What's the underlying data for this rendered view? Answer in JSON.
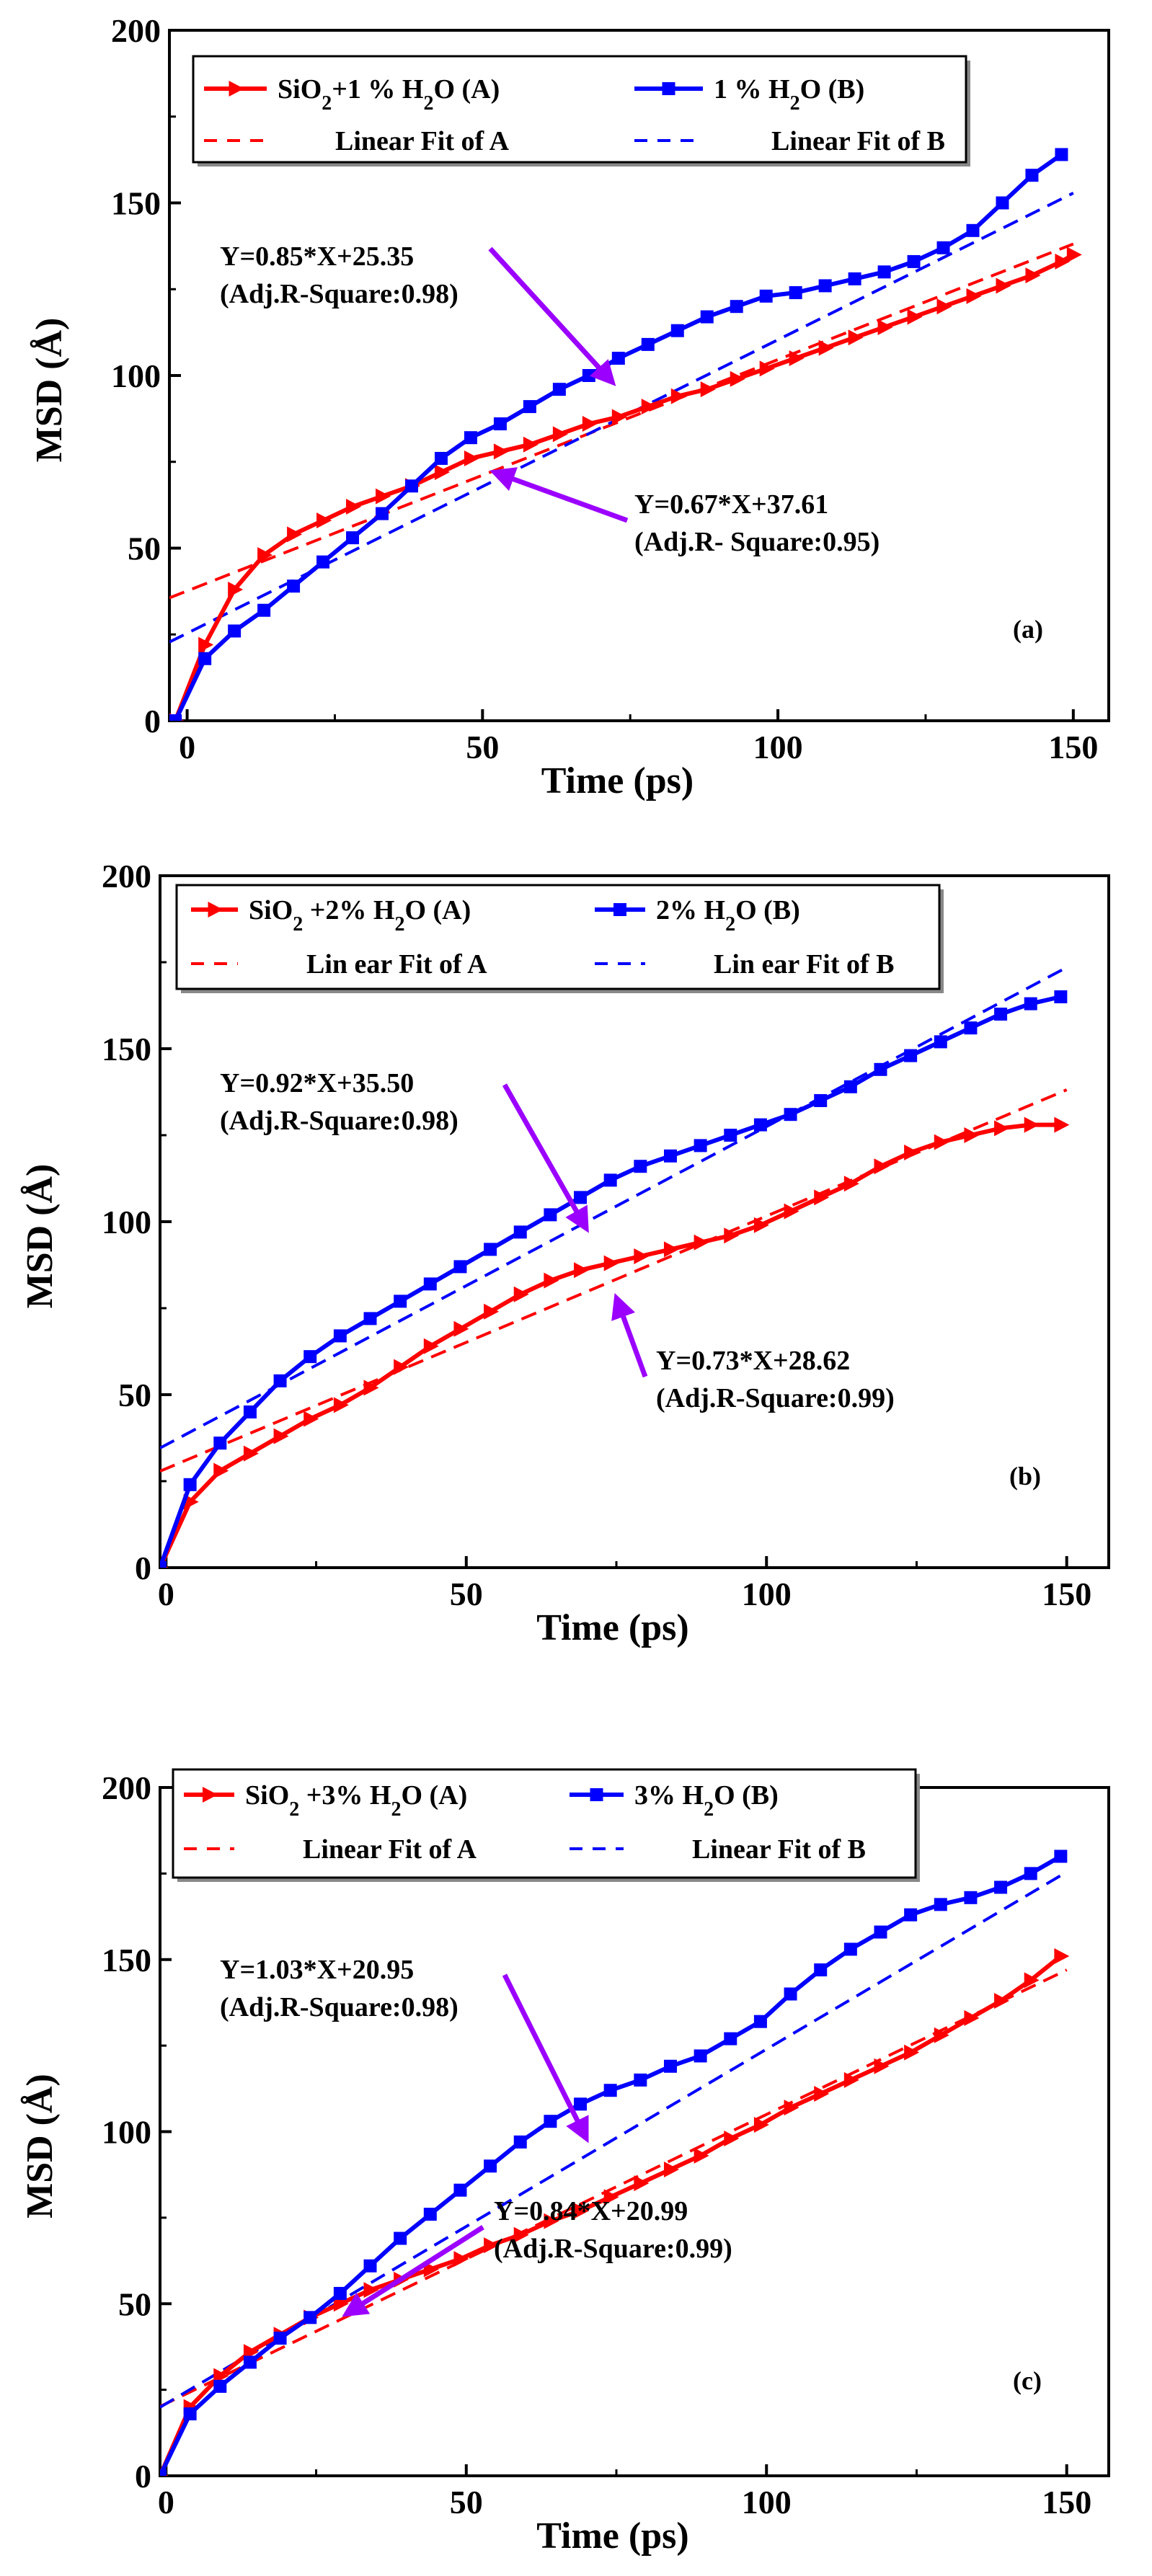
{
  "chart_data": [
    {
      "type": "line",
      "panel_label": "(a)",
      "xlabel": "Time (ps)",
      "ylabel": "MSD (Å)",
      "xlim": [
        -3,
        156
      ],
      "ylim": [
        0,
        200
      ],
      "xticks": [
        "0",
        "50",
        "100",
        "150"
      ],
      "yticks": [
        "0",
        "50",
        "100",
        "150",
        "200"
      ],
      "legend": {
        "position": "top-left",
        "entries": [
          {
            "text": "SiO₂+1 % H₂O (A)",
            "series": "A"
          },
          {
            "text": "1 % H₂O (B)",
            "series": "B"
          },
          {
            "text": "Linear Fit of A",
            "series": "fitA"
          },
          {
            "text": "Linear Fit of B",
            "series": "fitB"
          }
        ]
      },
      "series": [
        {
          "name": "A",
          "color": "#ff0000",
          "marker": "triangle-right",
          "x": [
            -2,
            3,
            8,
            13,
            18,
            23,
            28,
            33,
            38,
            43,
            48,
            53,
            58,
            63,
            68,
            73,
            78,
            83,
            88,
            93,
            98,
            103,
            108,
            113,
            118,
            123,
            128,
            133,
            138,
            143,
            148,
            150
          ],
          "y": [
            0,
            22,
            38,
            48,
            54,
            58,
            62,
            65,
            68,
            72,
            76,
            78,
            80,
            83,
            86,
            88,
            91,
            94,
            96,
            99,
            102,
            105,
            108,
            111,
            114,
            117,
            120,
            123,
            126,
            129,
            133,
            135
          ]
        },
        {
          "name": "B",
          "color": "#0000ff",
          "marker": "square",
          "x": [
            -2,
            3,
            8,
            13,
            18,
            23,
            28,
            33,
            38,
            43,
            48,
            53,
            58,
            63,
            68,
            73,
            78,
            83,
            88,
            93,
            98,
            103,
            108,
            113,
            118,
            123,
            128,
            133,
            138,
            143,
            148
          ],
          "y": [
            0,
            18,
            26,
            32,
            39,
            46,
            53,
            60,
            68,
            76,
            82,
            86,
            91,
            96,
            100,
            105,
            109,
            113,
            117,
            120,
            123,
            124,
            126,
            128,
            130,
            133,
            137,
            142,
            150,
            158,
            164
          ]
        },
        {
          "name": "fitA",
          "color": "#ff0000",
          "style": "dashed",
          "slope": 0.67,
          "intercept": 37.61,
          "x_range": [
            -3,
            150
          ]
        },
        {
          "name": "fitB",
          "color": "#0000ff",
          "style": "dashed",
          "slope": 0.85,
          "intercept": 25.35,
          "x_range": [
            -3,
            150
          ]
        }
      ],
      "annotations": [
        {
          "lines": [
            "Y=0.85*X+25.35",
            "(Adj.R-Square:0.98)"
          ],
          "arrow_to": [
            72,
            98
          ]
        },
        {
          "lines": [
            "Y=0.67*X+37.61",
            "(Adj.R- Square:0.95)"
          ],
          "arrow_to": [
            52,
            72
          ]
        }
      ]
    },
    {
      "type": "line",
      "panel_label": "(b)",
      "xlabel": "Time (ps)",
      "ylabel": "MSD (Å)",
      "xlim": [
        -1,
        157
      ],
      "ylim": [
        0,
        200
      ],
      "xticks": [
        "0",
        "50",
        "100",
        "150"
      ],
      "yticks": [
        "0",
        "50",
        "100",
        "150",
        "200"
      ],
      "legend": {
        "position": "top-left",
        "entries": [
          {
            "text": "SiO₂ +2% H₂O (A)",
            "series": "A"
          },
          {
            "text": "2% H₂O (B)",
            "series": "B"
          },
          {
            "text": "Lin ear Fit of A",
            "series": "fitA"
          },
          {
            "text": "Lin ear Fit of B",
            "series": "fitB"
          }
        ]
      },
      "series": [
        {
          "name": "A",
          "color": "#ff0000",
          "marker": "triangle-right",
          "x": [
            -1,
            4,
            9,
            14,
            19,
            24,
            29,
            34,
            39,
            44,
            49,
            54,
            59,
            64,
            69,
            74,
            79,
            84,
            89,
            94,
            99,
            104,
            109,
            114,
            119,
            124,
            129,
            134,
            139,
            144,
            149
          ],
          "y": [
            0,
            19,
            28,
            33,
            38,
            43,
            47,
            52,
            58,
            64,
            69,
            74,
            79,
            83,
            86,
            88,
            90,
            92,
            94,
            96,
            99,
            103,
            107,
            111,
            116,
            120,
            123,
            125,
            127,
            128,
            128
          ]
        },
        {
          "name": "B",
          "color": "#0000ff",
          "marker": "square",
          "x": [
            -1,
            4,
            9,
            14,
            19,
            24,
            29,
            34,
            39,
            44,
            49,
            54,
            59,
            64,
            69,
            74,
            79,
            84,
            89,
            94,
            99,
            104,
            109,
            114,
            119,
            124,
            129,
            134,
            139,
            144,
            149
          ],
          "y": [
            0,
            24,
            36,
            45,
            54,
            61,
            67,
            72,
            77,
            82,
            87,
            92,
            97,
            102,
            107,
            112,
            116,
            119,
            122,
            125,
            128,
            131,
            135,
            139,
            144,
            148,
            152,
            156,
            160,
            163,
            165
          ]
        },
        {
          "name": "fitA",
          "color": "#ff0000",
          "style": "dashed",
          "slope": 0.73,
          "intercept": 28.62,
          "x_range": [
            -1,
            150
          ]
        },
        {
          "name": "fitB",
          "color": "#0000ff",
          "style": "dashed",
          "slope": 0.92,
          "intercept": 35.5,
          "x_range": [
            -1,
            150
          ]
        }
      ],
      "annotations": [
        {
          "lines": [
            "Y=0.92*X+35.50",
            "(Adj.R-Square:0.98)"
          ],
          "arrow_to": [
            70,
            98
          ]
        },
        {
          "lines": [
            "Y=0.73*X+28.62",
            "(Adj.R-Square:0.99)"
          ],
          "arrow_to": [
            75,
            78
          ]
        }
      ]
    },
    {
      "type": "line",
      "panel_label": "(c)",
      "xlabel": "Time (ps)",
      "ylabel": "MSD (Å)",
      "xlim": [
        -1,
        157
      ],
      "ylim": [
        0,
        200
      ],
      "xticks": [
        "0",
        "50",
        "100",
        "150"
      ],
      "yticks": [
        "0",
        "50",
        "100",
        "150",
        "200"
      ],
      "legend": {
        "position": "top-left",
        "entries": [
          {
            "text": "SiO₂ +3% H₂O (A)",
            "series": "A"
          },
          {
            "text": "3% H₂O (B)",
            "series": "B"
          },
          {
            "text": "Linear Fit of A",
            "series": "fitA"
          },
          {
            "text": "Linear Fit of B",
            "series": "fitB"
          }
        ]
      },
      "series": [
        {
          "name": "A",
          "color": "#ff0000",
          "marker": "triangle-right",
          "x": [
            -1,
            4,
            9,
            14,
            19,
            24,
            29,
            34,
            39,
            44,
            49,
            54,
            59,
            64,
            69,
            74,
            79,
            84,
            89,
            94,
            99,
            104,
            109,
            114,
            119,
            124,
            129,
            134,
            139,
            144,
            149
          ],
          "y": [
            0,
            20,
            29,
            36,
            41,
            46,
            50,
            54,
            57,
            60,
            63,
            67,
            70,
            74,
            77,
            81,
            85,
            89,
            93,
            98,
            102,
            107,
            111,
            115,
            119,
            123,
            128,
            133,
            138,
            144,
            151
          ]
        },
        {
          "name": "B",
          "color": "#0000ff",
          "marker": "square",
          "x": [
            -1,
            4,
            9,
            14,
            19,
            24,
            29,
            34,
            39,
            44,
            49,
            54,
            59,
            64,
            69,
            74,
            79,
            84,
            89,
            94,
            99,
            104,
            109,
            114,
            119,
            124,
            129,
            134,
            139,
            144,
            149
          ],
          "y": [
            0,
            18,
            26,
            33,
            40,
            46,
            53,
            61,
            69,
            76,
            83,
            90,
            97,
            103,
            108,
            112,
            115,
            119,
            122,
            127,
            132,
            140,
            147,
            153,
            158,
            163,
            166,
            168,
            171,
            175,
            180
          ]
        },
        {
          "name": "fitA",
          "color": "#ff0000",
          "style": "dashed",
          "slope": 0.84,
          "intercept": 20.99,
          "x_range": [
            -1,
            150
          ]
        },
        {
          "name": "fitB",
          "color": "#0000ff",
          "style": "dashed",
          "slope": 1.03,
          "intercept": 20.95,
          "x_range": [
            -1,
            150
          ]
        }
      ],
      "annotations": [
        {
          "lines": [
            "Y=1.03*X+20.95",
            "(Adj.R-Square:0.98)"
          ],
          "arrow_to": [
            70,
            98
          ]
        },
        {
          "lines": [
            "Y=0.84*X+20.99",
            "(Adj.R-Square:0.99)"
          ],
          "arrow_to": [
            30,
            47
          ]
        }
      ]
    }
  ]
}
